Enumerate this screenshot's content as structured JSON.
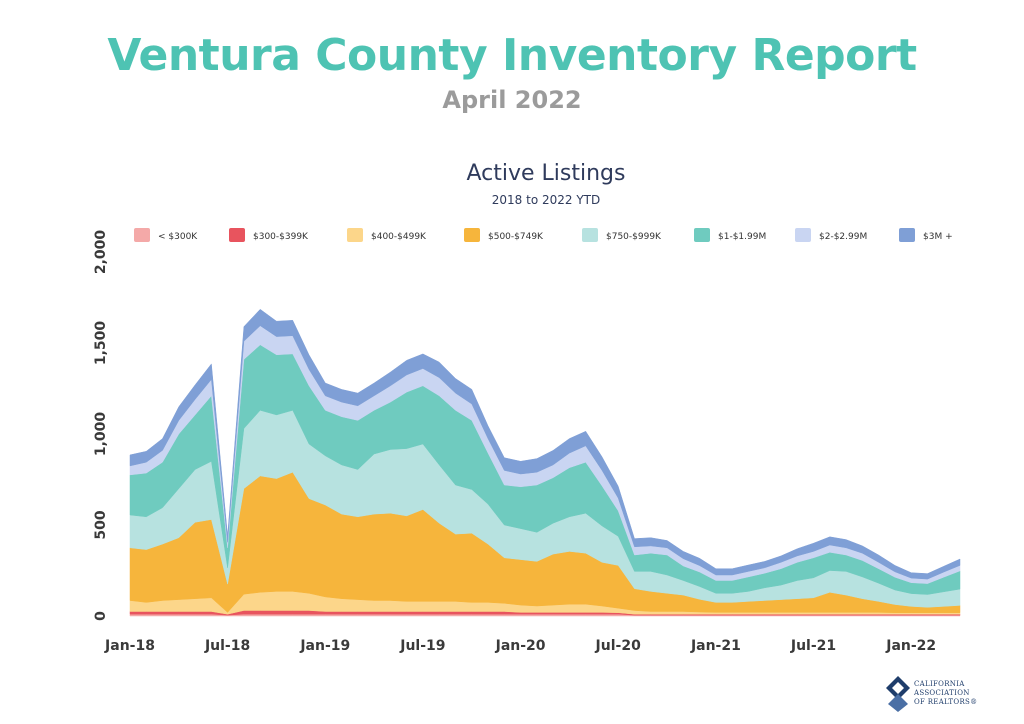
{
  "header": {
    "title": "Ventura County Inventory Report",
    "subtitle": "April 2022"
  },
  "chart_data": {
    "type": "area",
    "stacked": true,
    "title": "Active Listings",
    "subtitle": "2018 to 2022 YTD",
    "ylim": [
      0,
      2000
    ],
    "y_ticks": [
      "0",
      "500",
      "1,000",
      "1,500",
      "2,000"
    ],
    "x_ticks": [
      "Jan-18",
      "Jul-18",
      "Jan-19",
      "Jul-19",
      "Jan-20",
      "Jul-20",
      "Jan-21",
      "Jul-21",
      "Jan-22"
    ],
    "x_tick_index": [
      0,
      6,
      12,
      18,
      24,
      30,
      36,
      42,
      48
    ],
    "x_count": 52,
    "grid": false,
    "legend_position": "top",
    "series": [
      {
        "name": "< $300K",
        "color": "#f4a9a8",
        "values": [
          10,
          10,
          10,
          10,
          10,
          10,
          5,
          10,
          10,
          10,
          10,
          10,
          10,
          10,
          10,
          10,
          10,
          10,
          10,
          10,
          10,
          10,
          10,
          10,
          10,
          10,
          10,
          10,
          10,
          10,
          10,
          5,
          5,
          5,
          5,
          5,
          5,
          5,
          5,
          5,
          5,
          5,
          5,
          5,
          5,
          5,
          5,
          5,
          5,
          5,
          5,
          5
        ]
      },
      {
        "name": "$300-$399K",
        "color": "#e8545e",
        "values": [
          15,
          15,
          15,
          15,
          15,
          15,
          5,
          20,
          20,
          20,
          20,
          20,
          15,
          15,
          15,
          15,
          15,
          15,
          15,
          15,
          15,
          15,
          15,
          15,
          10,
          10,
          10,
          10,
          10,
          10,
          8,
          5,
          5,
          5,
          5,
          5,
          5,
          5,
          5,
          5,
          5,
          5,
          5,
          5,
          5,
          5,
          5,
          5,
          5,
          5,
          5,
          5
        ]
      },
      {
        "name": "$400-$499K",
        "color": "#fcd68a",
        "values": [
          60,
          50,
          60,
          65,
          70,
          75,
          10,
          90,
          100,
          105,
          105,
          95,
          80,
          70,
          65,
          60,
          60,
          55,
          55,
          55,
          55,
          50,
          50,
          45,
          40,
          35,
          40,
          45,
          45,
          35,
          25,
          20,
          15,
          15,
          15,
          12,
          10,
          10,
          10,
          10,
          10,
          10,
          10,
          10,
          10,
          10,
          10,
          8,
          8,
          8,
          8,
          8
        ]
      },
      {
        "name": "$500-$749K",
        "color": "#f6b53c",
        "values": [
          290,
          290,
          310,
          340,
          420,
          430,
          155,
          580,
          640,
          620,
          655,
          520,
          505,
          465,
          455,
          475,
          480,
          470,
          505,
          430,
          370,
          380,
          320,
          250,
          250,
          245,
          280,
          290,
          280,
          240,
          235,
          120,
          110,
          100,
          90,
          70,
          55,
          55,
          60,
          65,
          70,
          75,
          80,
          110,
          95,
          75,
          60,
          45,
          35,
          30,
          35,
          40
        ]
      },
      {
        "name": "$750-$999K",
        "color": "#b7e2e0",
        "values": [
          180,
          180,
          200,
          270,
          290,
          320,
          90,
          330,
          360,
          350,
          340,
          300,
          270,
          270,
          260,
          330,
          350,
          370,
          360,
          320,
          270,
          240,
          220,
          180,
          170,
          160,
          170,
          190,
          220,
          200,
          160,
          95,
          110,
          100,
          80,
          70,
          50,
          50,
          55,
          70,
          80,
          100,
          110,
          120,
          130,
          120,
          100,
          80,
          70,
          70,
          80,
          90
        ]
      },
      {
        "name": "$1-$1.99M",
        "color": "#6fcbbf",
        "values": [
          220,
          240,
          250,
          300,
          300,
          360,
          110,
          380,
          360,
          330,
          310,
          320,
          250,
          265,
          270,
          240,
          260,
          310,
          320,
          380,
          410,
          380,
          280,
          220,
          230,
          260,
          250,
          270,
          280,
          220,
          140,
          90,
          100,
          110,
          80,
          80,
          70,
          70,
          80,
          80,
          90,
          100,
          110,
          100,
          90,
          90,
          80,
          70,
          60,
          60,
          80,
          100
        ]
      },
      {
        "name": "$2-$2.99M",
        "color": "#c9d5f2",
        "values": [
          50,
          60,
          65,
          75,
          85,
          90,
          30,
          100,
          105,
          100,
          100,
          90,
          80,
          80,
          80,
          80,
          90,
          95,
          95,
          100,
          95,
          90,
          80,
          80,
          70,
          70,
          70,
          80,
          90,
          85,
          70,
          45,
          40,
          40,
          40,
          35,
          30,
          30,
          30,
          30,
          35,
          35,
          35,
          40,
          40,
          40,
          35,
          30,
          25,
          25,
          28,
          30
        ]
      },
      {
        "name": "$3M +",
        "color": "#7f9fd6",
        "values": [
          60,
          60,
          65,
          75,
          80,
          85,
          35,
          80,
          90,
          85,
          85,
          80,
          70,
          70,
          70,
          70,
          75,
          80,
          80,
          85,
          80,
          80,
          70,
          70,
          70,
          75,
          80,
          80,
          80,
          75,
          65,
          45,
          45,
          40,
          40,
          40,
          35,
          35,
          35,
          35,
          35,
          40,
          45,
          45,
          45,
          40,
          40,
          35,
          30,
          30,
          32,
          35
        ]
      }
    ]
  },
  "logo": {
    "line1": "CALIFORNIA",
    "line2": "ASSOCIATION",
    "line3": "OF REALTORS®"
  }
}
